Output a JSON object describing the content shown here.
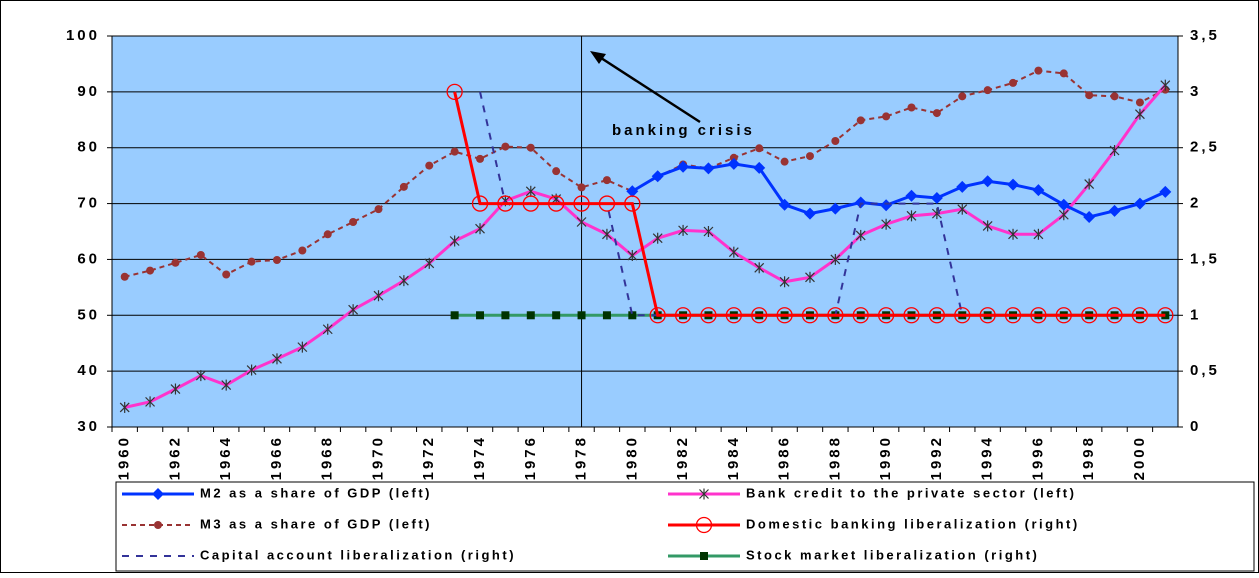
{
  "chart_data": {
    "type": "line",
    "categories": [
      "1960",
      null,
      "1962",
      null,
      "1964",
      null,
      "1966",
      null,
      "1968",
      null,
      "1970",
      null,
      "1972",
      null,
      "1974",
      null,
      "1976",
      null,
      "1978",
      null,
      "1980",
      null,
      "1982",
      null,
      "1984",
      null,
      "1986",
      null,
      "1988",
      null,
      "1990",
      null,
      "1992",
      null,
      "1994",
      null,
      "1996",
      null,
      "1998",
      null,
      "2000",
      null
    ],
    "series": [
      {
        "name": "M2 as a share of GDP (left)",
        "color": "#0033ff",
        "marker": "diamond",
        "line_style": "solid",
        "axis": "y",
        "values": [
          null,
          null,
          null,
          null,
          null,
          null,
          null,
          null,
          null,
          null,
          null,
          null,
          null,
          null,
          null,
          null,
          null,
          null,
          null,
          null,
          72.2,
          74.9,
          76.6,
          76.3,
          77.1,
          76.4,
          69.8,
          68.2,
          69.1,
          70.2,
          69.7,
          71.4,
          71,
          73,
          74,
          73.4,
          72.4,
          69.8,
          67.6,
          68.7,
          70,
          72.1
        ]
      },
      {
        "name": "Bank credit to the private sector (left)",
        "color": "#ff33cc",
        "marker": "asterisk",
        "line_style": "solid",
        "axis": "y",
        "values": [
          33.5,
          34.5,
          36.8,
          39.2,
          37.5,
          40.2,
          42.2,
          44.3,
          47.5,
          51,
          53.5,
          56.2,
          59.3,
          63.3,
          65.5,
          70.5,
          72.2,
          70.8,
          66.7,
          64.5,
          60.7,
          63.8,
          65.2,
          65,
          61.3,
          58.5,
          56,
          56.8,
          60,
          64.3,
          66.3,
          67.8,
          68.2,
          69,
          66,
          64.5,
          64.5,
          68,
          73.5,
          79.5,
          86,
          91.2
        ]
      },
      {
        "name": "M3 as a share of GDP (left)",
        "color": "#993333",
        "marker": "circle",
        "line_style": "dashed",
        "axis": "y",
        "values": [
          56.9,
          58,
          59.4,
          60.8,
          57.3,
          59.6,
          59.9,
          61.6,
          64.5,
          66.7,
          69,
          73,
          76.8,
          79.3,
          78,
          80.2,
          80,
          75.8,
          72.9,
          74.2,
          72.2,
          74.8,
          77,
          76.3,
          78.2,
          79.9,
          77.5,
          78.5,
          81.2,
          84.9,
          85.6,
          87.2,
          86.2,
          89.2,
          90.3,
          91.6,
          93.8,
          93.3,
          89.4,
          89.2,
          88.1,
          90.4
        ]
      },
      {
        "name": "Domestic banking liberalization (right)",
        "color": "#ff0000",
        "marker": "open-circle",
        "line_style": "solid",
        "axis": "y2",
        "values": [
          null,
          null,
          null,
          null,
          null,
          null,
          null,
          null,
          null,
          null,
          null,
          null,
          null,
          3,
          2,
          2,
          2,
          2,
          2,
          2,
          2,
          1,
          1,
          1,
          1,
          1,
          1,
          1,
          1,
          1,
          1,
          1,
          1,
          1,
          1,
          1,
          1,
          1,
          1,
          1,
          1,
          1
        ]
      },
      {
        "name": "Capital account liberalization (right)",
        "color": "#333399",
        "marker": "none",
        "line_style": "dashed",
        "axis": "y2",
        "values": [
          null,
          null,
          null,
          null,
          null,
          null,
          null,
          null,
          null,
          null,
          null,
          null,
          null,
          null,
          3,
          2,
          2,
          2,
          2,
          2,
          1,
          1,
          1,
          1,
          1,
          1,
          1,
          1,
          1,
          2,
          2,
          2,
          2,
          1,
          1,
          1,
          1,
          1,
          1,
          1,
          1,
          1
        ]
      },
      {
        "name": "Stock market liberalization (right)",
        "color": "#339966",
        "marker": "square",
        "line_style": "solid",
        "axis": "y2",
        "values": [
          null,
          null,
          null,
          null,
          null,
          null,
          null,
          null,
          null,
          null,
          null,
          null,
          null,
          1,
          1,
          1,
          1,
          1,
          1,
          1,
          1,
          1,
          1,
          1,
          1,
          1,
          1,
          1,
          1,
          1,
          1,
          1,
          1,
          1,
          1,
          1,
          1,
          1,
          1,
          1,
          1,
          1
        ]
      }
    ],
    "ylim": [
      30,
      100
    ],
    "yticks": [
      30,
      40,
      50,
      60,
      70,
      80,
      90,
      100
    ],
    "y2lim": [
      0,
      3.5
    ],
    "y2ticks": [
      0,
      {
        "value": 0.5,
        "label": "0,5"
      },
      1,
      {
        "value": 1.5,
        "label": "1,5"
      },
      2,
      {
        "value": 2.5,
        "label": "2,5"
      },
      3,
      {
        "value": 3.5,
        "label": "3,5"
      }
    ],
    "grid": true,
    "annotations": [
      {
        "text": "banking crisis",
        "x": "1978"
      }
    ],
    "legend": "bottom"
  }
}
